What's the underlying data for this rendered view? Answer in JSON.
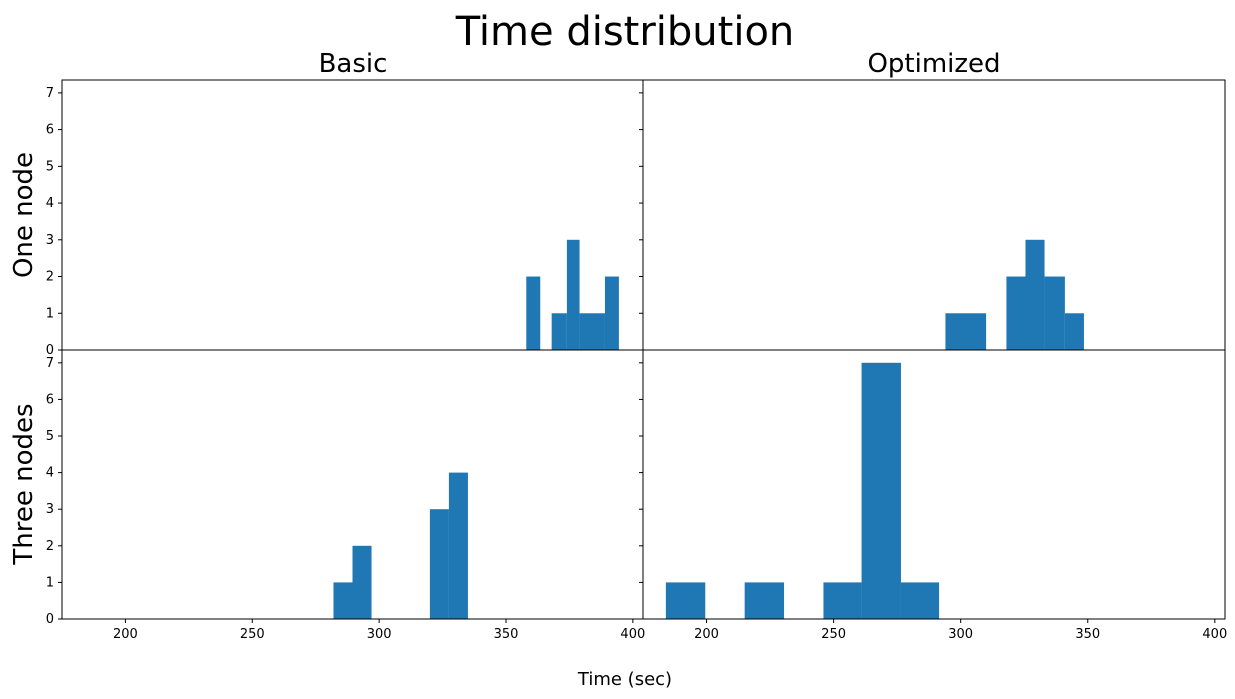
{
  "chart_data": {
    "type": "bar",
    "title": "Time distribution",
    "xlabel": "Time (sec)",
    "column_titles": [
      "Basic",
      "Optimized"
    ],
    "row_labels": [
      "One node",
      "Three nodes"
    ],
    "ylim": [
      0,
      7.35
    ],
    "yticks": [
      0,
      1,
      2,
      3,
      4,
      5,
      6,
      7
    ],
    "xlim": [
      175,
      404
    ],
    "xticks": [
      200,
      250,
      300,
      350,
      400
    ],
    "bar_color": "#1f77b4",
    "panels": [
      {
        "row": "One node",
        "column": "Basic",
        "bins": [
          {
            "x0": 358,
            "x1": 363.5,
            "count": 2
          },
          {
            "x0": 368,
            "x1": 374,
            "count": 1
          },
          {
            "x0": 374,
            "x1": 379,
            "count": 3
          },
          {
            "x0": 379,
            "x1": 389,
            "count": 1
          },
          {
            "x0": 389,
            "x1": 394.5,
            "count": 2
          }
        ]
      },
      {
        "row": "One node",
        "column": "Optimized",
        "bins": [
          {
            "x0": 294,
            "x1": 310,
            "count": 1
          },
          {
            "x0": 318,
            "x1": 325.5,
            "count": 2
          },
          {
            "x0": 325.5,
            "x1": 333,
            "count": 3
          },
          {
            "x0": 333,
            "x1": 341,
            "count": 2
          },
          {
            "x0": 341,
            "x1": 348.5,
            "count": 1
          }
        ]
      },
      {
        "row": "Three nodes",
        "column": "Basic",
        "bins": [
          {
            "x0": 282,
            "x1": 289.5,
            "count": 1
          },
          {
            "x0": 289.5,
            "x1": 297,
            "count": 2
          },
          {
            "x0": 320,
            "x1": 327.5,
            "count": 3
          },
          {
            "x0": 327.5,
            "x1": 335,
            "count": 4
          }
        ]
      },
      {
        "row": "Three nodes",
        "column": "Optimized",
        "bins": [
          {
            "x0": 184,
            "x1": 199.5,
            "count": 1
          },
          {
            "x0": 215,
            "x1": 230.5,
            "count": 1
          },
          {
            "x0": 246,
            "x1": 261,
            "count": 1
          },
          {
            "x0": 261,
            "x1": 276.5,
            "count": 7
          },
          {
            "x0": 276.5,
            "x1": 291.5,
            "count": 1
          }
        ]
      }
    ]
  }
}
